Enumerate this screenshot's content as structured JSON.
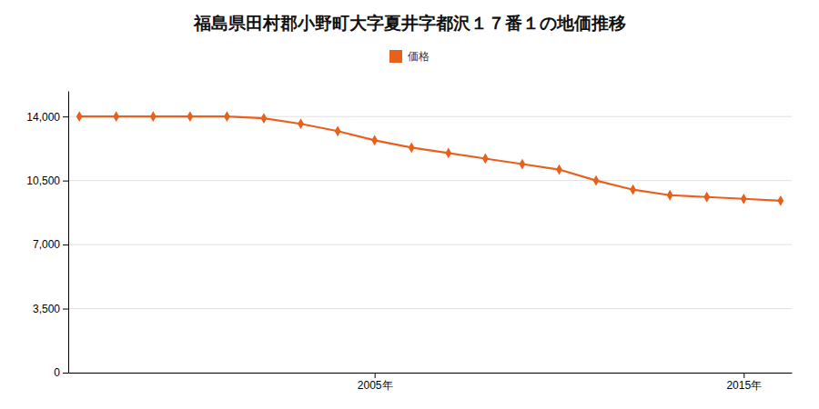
{
  "chart_data": {
    "type": "line",
    "title": "福島県田村郡小野町大字夏井字都沢１７番１の地価推移",
    "x": [
      1997,
      1998,
      1999,
      2000,
      2001,
      2002,
      2003,
      2004,
      2005,
      2006,
      2007,
      2008,
      2009,
      2010,
      2011,
      2012,
      2013,
      2014,
      2015,
      2016
    ],
    "series": [
      {
        "name": "価格",
        "color": "#e8601c",
        "marker": "diamond",
        "values": [
          14000,
          14000,
          14000,
          14000,
          14000,
          13900,
          13600,
          13200,
          12700,
          12300,
          12000,
          11700,
          11400,
          11100,
          10500,
          10000,
          9700,
          9600,
          9500,
          9400
        ]
      }
    ],
    "xlim": [
      1996.7,
      2016.3
    ],
    "xticks": [
      {
        "value": 2005,
        "label": "2005年"
      },
      {
        "value": 2015,
        "label": "2015年"
      }
    ],
    "ylim": [
      0,
      15400
    ],
    "yticks": [
      0,
      {
        "value": 3500,
        "label": "3,500"
      },
      {
        "value": 7000,
        "label": "7,000"
      },
      {
        "value": 10500,
        "label": "10,500"
      },
      {
        "value": 14000,
        "label": "14,000"
      }
    ],
    "grid": true,
    "legend": "top"
  }
}
